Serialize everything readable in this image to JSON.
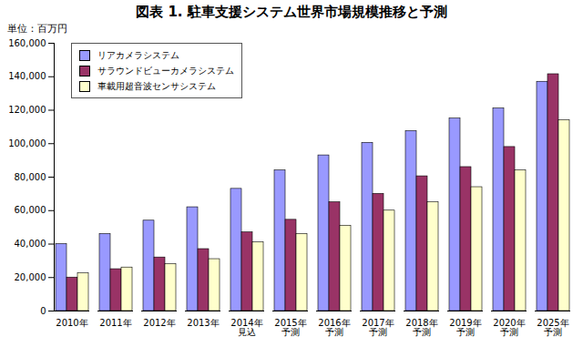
{
  "chart_data": {
    "type": "bar",
    "title": "図表 1. 駐車支援システム世界市場規模推移と予測",
    "y_label": "単位：百万円",
    "categories": [
      "2010年",
      "2011年",
      "2012年",
      "2013年",
      "2014年\n見込",
      "2015年\n予測",
      "2016年\n予測",
      "2017年\n予測",
      "2018年\n予測",
      "2019年\n予測",
      "2020年\n予測",
      "2025年\n予測"
    ],
    "series": [
      {
        "name": "リアカメラシステム",
        "color": "#9999ff",
        "values": [
          40000,
          46000,
          54000,
          62000,
          73000,
          84000,
          93000,
          100500,
          107500,
          115000,
          121000,
          137000
        ]
      },
      {
        "name": "サラウンドビューカメラシステム",
        "color": "#993366",
        "values": [
          20000,
          25000,
          32000,
          37000,
          47000,
          54500,
          65000,
          70000,
          80500,
          86000,
          98000,
          141500
        ]
      },
      {
        "name": "車載用超音波センサシステム",
        "color": "#ffffcc",
        "values": [
          22500,
          26000,
          28000,
          31000,
          41000,
          46000,
          51000,
          60000,
          65000,
          74000,
          84000,
          114000
        ]
      }
    ],
    "ylim": [
      0,
      160000
    ],
    "yticks": [
      0,
      {
        "value": 20000,
        "label": "20,000"
      },
      {
        "value": 40000,
        "label": "40,000"
      },
      {
        "value": 60000,
        "label": "60,000"
      },
      {
        "value": 80000,
        "label": "80,000"
      },
      {
        "value": 100000,
        "label": "100,000"
      },
      {
        "value": 120000,
        "label": "120,000"
      },
      {
        "value": 140000,
        "label": "140,000"
      },
      {
        "value": 160000,
        "label": "160,000"
      }
    ],
    "grid": false,
    "legend": "top-left"
  }
}
